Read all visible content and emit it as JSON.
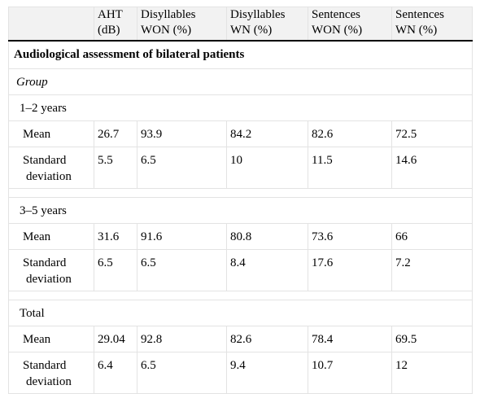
{
  "table": {
    "headers": [
      {
        "line1": "",
        "line2": ""
      },
      {
        "line1": "AHT",
        "line2": "(dB)"
      },
      {
        "line1": "Disyllables",
        "line2": "WON (%)"
      },
      {
        "line1": "Disyllables",
        "line2": "WN (%)"
      },
      {
        "line1": "Sentences",
        "line2": "WON (%)"
      },
      {
        "line1": "Sentences",
        "line2": "WN (%)"
      }
    ],
    "section_title": "Audiological assessment of bilateral patients",
    "group_label": "Group",
    "groups": [
      {
        "name": "1–2 years",
        "mean": {
          "label": "Mean",
          "values": [
            "26.7",
            "93.9",
            "84.2",
            "82.6",
            "72.5"
          ]
        },
        "sd": {
          "label_line1": "Standard",
          "label_line2": "deviation",
          "values": [
            "5.5",
            "6.5",
            "10",
            "11.5",
            "14.6"
          ]
        }
      },
      {
        "name": "3–5 years",
        "mean": {
          "label": "Mean",
          "values": [
            "31.6",
            "91.6",
            "80.8",
            "73.6",
            "66"
          ]
        },
        "sd": {
          "label_line1": "Standard",
          "label_line2": "deviation",
          "values": [
            "6.5",
            "6.5",
            "8.4",
            "17.6",
            "7.2"
          ]
        }
      },
      {
        "name": "Total",
        "mean": {
          "label": "Mean",
          "values": [
            "29.04",
            "92.8",
            "82.6",
            "78.4",
            "69.5"
          ]
        },
        "sd": {
          "label_line1": "Standard",
          "label_line2": "deviation",
          "values": [
            "6.4",
            "6.5",
            "9.4",
            "10.7",
            "12"
          ]
        }
      }
    ]
  }
}
